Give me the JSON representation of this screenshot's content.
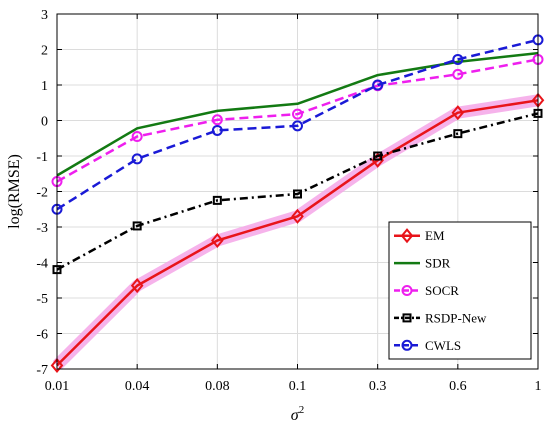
{
  "chart_data": {
    "type": "line",
    "title": "",
    "xlabel": "σ",
    "xlabel_superscript": "2",
    "ylabel": "log(RMSE)",
    "categories": [
      "0.01",
      "0.04",
      "0.08",
      "0.1",
      "0.3",
      "0.6",
      "1"
    ],
    "yticks": [
      "-7",
      "-6",
      "-5",
      "-4",
      "-3",
      "-2",
      "-1",
      "0",
      "1",
      "2",
      "3"
    ],
    "ylim": [
      -7,
      3
    ],
    "grid": true,
    "legend_position": "bottom-right",
    "series": [
      {
        "name": "EM",
        "values": [
          -6.9,
          -4.65,
          -3.38,
          -2.7,
          -1.12,
          0.22,
          0.57
        ],
        "color": "#e8141a",
        "dash": "solid",
        "marker": "diamond",
        "band_color": "#f4a6e8"
      },
      {
        "name": "SDR",
        "values": [
          -1.55,
          -0.22,
          0.27,
          0.47,
          1.28,
          1.65,
          1.9
        ],
        "color": "#137a13",
        "dash": "solid",
        "marker": "none"
      },
      {
        "name": "SOCR",
        "values": [
          -1.72,
          -0.45,
          0.02,
          0.18,
          0.98,
          1.3,
          1.72
        ],
        "color": "#ee1fee",
        "dash": "dashed",
        "marker": "circle"
      },
      {
        "name": "RSDP-New",
        "values": [
          -4.2,
          -2.97,
          -2.25,
          -2.07,
          -1.0,
          -0.37,
          0.2
        ],
        "color": "#000000",
        "dash": "dashdot",
        "marker": "square"
      },
      {
        "name": "CWLS",
        "values": [
          -2.5,
          -1.08,
          -0.28,
          -0.15,
          1.0,
          1.72,
          2.27
        ],
        "color": "#1a1ad6",
        "dash": "dashed",
        "marker": "circle"
      }
    ]
  }
}
